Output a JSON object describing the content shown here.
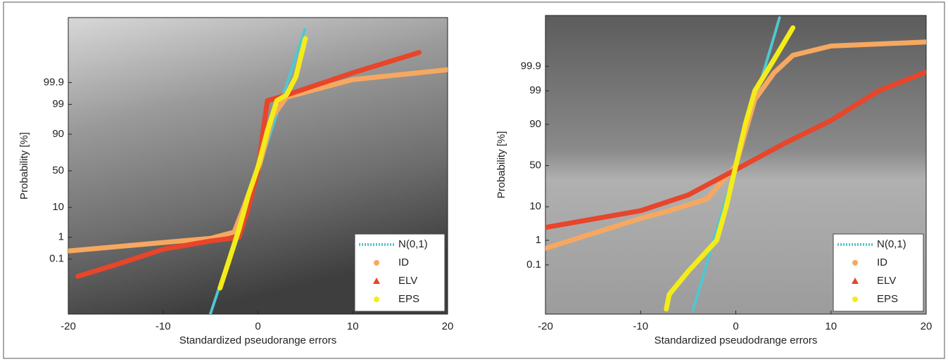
{
  "chart_data": [
    {
      "type": "probability",
      "xlabel": "Standardized pseudorange errors",
      "ylabel": "Probability [%]",
      "yscale": "probit",
      "xlim": [
        -20,
        20
      ],
      "xticks": [
        -20,
        -10,
        0,
        10,
        20
      ],
      "ylim": [
        2.6e-05,
        99.999996
      ],
      "yticks": [
        0.1,
        1,
        10,
        50,
        90,
        99,
        99.9
      ],
      "legend": "lower right",
      "series": [
        {
          "name": "N(0,1)",
          "color": "#4fc8d0",
          "x": [
            -5,
            -4,
            -3,
            -2,
            -1,
            0,
            1,
            2,
            3,
            4,
            5
          ],
          "values": [
            2.87e-05,
            0.00317,
            0.135,
            2.28,
            15.87,
            50,
            84.13,
            97.72,
            99.865,
            99.9968,
            99.99997
          ]
        },
        {
          "name": "ID",
          "color": "#f7a860",
          "x": [
            -20,
            -10,
            -5,
            -2.5,
            -1.5,
            -0.5,
            0,
            0.7,
            1.5,
            3,
            10,
            20
          ],
          "values": [
            0.25,
            0.6,
            0.9,
            1.6,
            10,
            35,
            50,
            80,
            97,
            99.5,
            99.93,
            99.98
          ]
        },
        {
          "name": "ELV",
          "color": "#e8452a",
          "x": [
            -19,
            -15,
            -10,
            -5,
            -2,
            -1,
            0,
            0.5,
            1,
            3,
            10,
            17
          ],
          "values": [
            0.011,
            0.05,
            0.3,
            0.7,
            1,
            10,
            50,
            90,
            99.3,
            99.6,
            99.97,
            99.9983
          ]
        },
        {
          "name": "EPS",
          "color": "#f4ec1a",
          "x": [
            -4,
            -3,
            -2,
            -1,
            0,
            1,
            2,
            3,
            4,
            5
          ],
          "values": [
            0.002,
            0.1,
            2,
            20,
            55,
            92,
            99.3,
            99.6,
            99.95,
            99.99982
          ]
        }
      ]
    },
    {
      "type": "probability",
      "xlabel": "Standardized pseudodrange errors",
      "ylabel": "Probability [%]",
      "yscale": "probit",
      "xlim": [
        -20,
        20
      ],
      "xticks": [
        -20,
        -10,
        0,
        10,
        20
      ],
      "ylim": [
        0.00019,
        99.99985
      ],
      "yticks": [
        0.1,
        1,
        10,
        50,
        90,
        99,
        99.9
      ],
      "legend": "lower right",
      "series": [
        {
          "name": "N(0,1)",
          "color": "#4fc8d0",
          "x": [
            -4.5,
            -4,
            -3,
            -2,
            -1,
            0,
            1,
            2,
            3,
            4,
            4.6
          ],
          "values": [
            0.00034,
            0.00317,
            0.135,
            2.28,
            15.87,
            50,
            84.13,
            97.72,
            99.865,
            99.9968,
            99.9998
          ]
        },
        {
          "name": "ID",
          "color": "#f7a860",
          "x": [
            -20,
            -10,
            -7,
            -3,
            0,
            1,
            2,
            4,
            6,
            10,
            20
          ],
          "values": [
            0.5,
            5,
            8,
            15,
            50,
            85,
            98,
            99.8,
            99.97,
            99.99,
            99.994
          ]
        },
        {
          "name": "ELV",
          "color": "#e8452a",
          "x": [
            -20,
            -10,
            -5,
            0,
            5,
            10,
            15,
            20
          ],
          "values": [
            2.7,
            8,
            18,
            45,
            75,
            92,
            99,
            99.82
          ]
        },
        {
          "name": "EPS",
          "color": "#f4ec1a",
          "x": [
            -7.3,
            -7,
            -5,
            -2,
            -1,
            0,
            1,
            2,
            4,
            6
          ],
          "values": [
            0.0004,
            0.003,
            0.05,
            1,
            10,
            50,
            90,
            99,
            99.95,
            99.9991
          ]
        }
      ]
    }
  ]
}
